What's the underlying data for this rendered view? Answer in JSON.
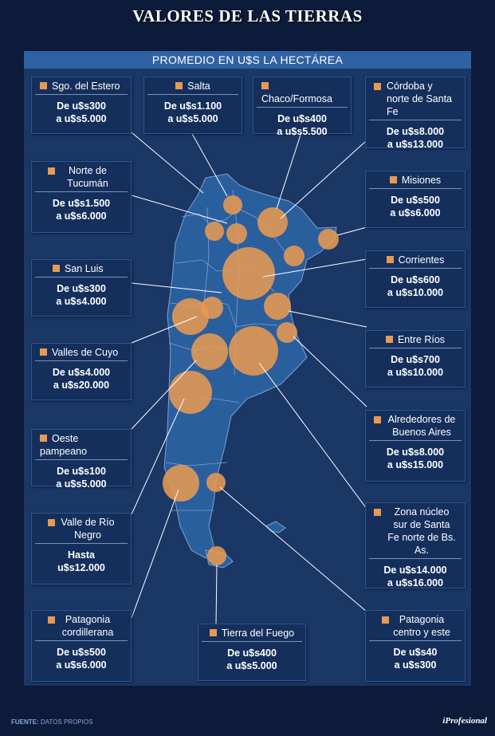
{
  "title": "VALORES DE LAS TIERRAS",
  "subtitle": "PROMEDIO EN U$S LA HECTÁREA",
  "regions": [
    {
      "id": "sgo",
      "name": "Sgo. del Estero",
      "min": "De u$s300",
      "max": "a u$s5.000"
    },
    {
      "id": "salta",
      "name": "Salta",
      "min": "De u$s1.100",
      "max": "a u$s5.000"
    },
    {
      "id": "chaco",
      "name": "Chaco/Formosa",
      "min": "De u$s400",
      "max": "a u$s5.500"
    },
    {
      "id": "cordoba",
      "name": "Córdoba y norte de Santa Fe",
      "min": "De u$s8.000",
      "max": "a u$s13.000"
    },
    {
      "id": "tucuman",
      "name": "Norte de Tucumán",
      "min": "De u$s1.500",
      "max": "a u$s6.000"
    },
    {
      "id": "misiones",
      "name": "Misiones",
      "min": "De u$s500",
      "max": "a u$s6.000"
    },
    {
      "id": "sanluis",
      "name": "San Luis",
      "min": "De u$s300",
      "max": "a u$s4.000"
    },
    {
      "id": "corrientes",
      "name": "Corrientes",
      "min": "De u$s600",
      "max": "a u$s10.000"
    },
    {
      "id": "cuyo",
      "name": "Valles de Cuyo",
      "min": "De u$s4.000",
      "max": "a u$s20.000"
    },
    {
      "id": "entrerios",
      "name": "Entre Ríos",
      "min": "De u$s700",
      "max": "a u$s10.000"
    },
    {
      "id": "bsas",
      "name": "Alrededores de Buenos Aires",
      "min": "De u$s8.000",
      "max": "a u$s15.000"
    },
    {
      "id": "pampeano",
      "name": "Oeste pampeano",
      "min": "De u$s100",
      "max": "a u$s5.000"
    },
    {
      "id": "rionegro",
      "name": "Valle de Río Negro",
      "min": "Hasta",
      "max": "u$s12.000"
    },
    {
      "id": "nucleo",
      "name": "Zona núcleo sur de Santa Fe norte de Bs. As.",
      "min": "De u$s14.000",
      "max": "a u$s16.000"
    },
    {
      "id": "patcord",
      "name": "Patagonia cordillerana",
      "min": "De u$s500",
      "max": "a u$s6.000"
    },
    {
      "id": "tdf",
      "name": "Tierra del Fuego",
      "min": "De u$s400",
      "max": "a u$s5.000"
    },
    {
      "id": "patce",
      "name": "Patagonia centro y este",
      "min": "De u$s40",
      "max": "a u$s300"
    }
  ],
  "footer": {
    "source_label": "FUENTE:",
    "source_value": "DATOS PROPIOS",
    "brand": "iProfesional"
  },
  "colors": {
    "background": "#0c1b3a",
    "panel": "#1a3766",
    "land": "#2a5f9e",
    "bubble": "#e79a52"
  }
}
